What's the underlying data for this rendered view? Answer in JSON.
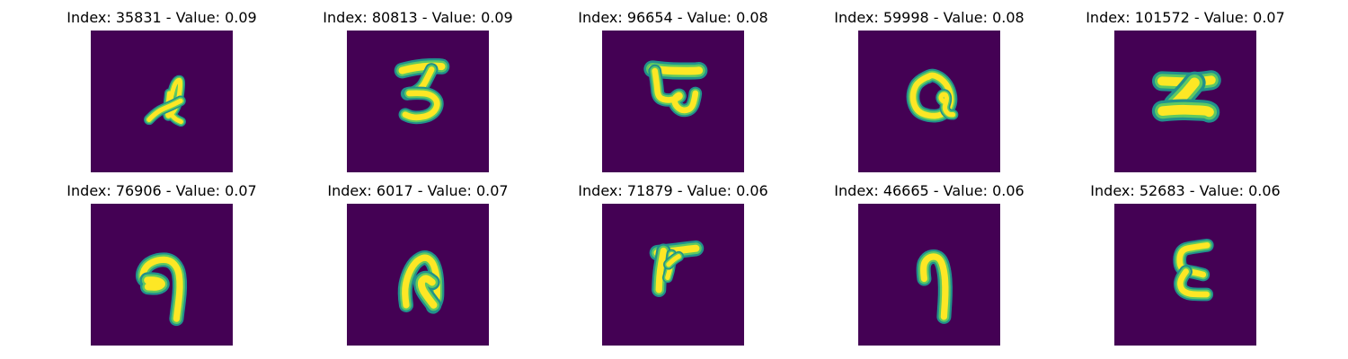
{
  "chart_data": {
    "type": "image-grid",
    "layout": {
      "rows": 2,
      "cols": 5
    },
    "colormap": {
      "name": "viridis",
      "background": "#440154",
      "foreground": "#fde725"
    },
    "axes_visible": false,
    "panels": [
      {
        "title": "Index: 35831 - Value: 0.09",
        "index": 35831,
        "value": 0.09,
        "strokes": [
          {
            "points": [
              [
                1.0,
                3.4
              ],
              [
                0.5,
                7.7
              ],
              [
                1.0,
                8.0
              ],
              [
                2.2,
                6.5
              ],
              [
                2.9,
                4.3
              ],
              [
                3.2,
                1.4
              ],
              [
                3.0,
                0.6
              ],
              [
                2.2,
                1.3
              ],
              [
                1.6,
                3.0
              ],
              [
                1.2,
                4.9
              ],
              [
                1.1,
                7.3
              ],
              [
                2.2,
                8.5
              ],
              [
                3.3,
                9.0
              ]
            ],
            "width": 0.75
          },
          {
            "points": [
              [
                -3.0,
                8.6
              ],
              [
                -1.5,
                7.0
              ],
              [
                1.2,
                5.9
              ],
              [
                3.2,
                4.9
              ]
            ],
            "width": 0.8
          }
        ]
      },
      {
        "title": "Index: 80813 - Value: 0.09",
        "index": 80813,
        "value": 0.09,
        "strokes": [
          {
            "points": [
              [
                -3.6,
                -1.1
              ],
              [
                -2.0,
                -1.5
              ],
              [
                0.5,
                -1.9
              ],
              [
                3.0,
                -2.0
              ],
              [
                4.2,
                -1.9
              ]
            ],
            "width": 1.2
          },
          {
            "points": [
              [
                2.2,
                -1.3
              ],
              [
                1.3,
                0.5
              ],
              [
                0.4,
                2.2
              ],
              [
                -1.2,
                3.3
              ],
              [
                -2.6,
                3.5
              ]
            ],
            "width": 1.0
          },
          {
            "points": [
              [
                -2.2,
                3.4
              ],
              [
                0.5,
                3.3
              ],
              [
                2.3,
                3.8
              ],
              [
                3.4,
                5.0
              ],
              [
                3.1,
                6.6
              ],
              [
                1.7,
                7.8
              ],
              [
                -0.3,
                8.2
              ],
              [
                -1.9,
                8.1
              ],
              [
                -3.0,
                7.6
              ]
            ],
            "width": 1.0
          }
        ]
      },
      {
        "title": "Index: 96654 - Value: 0.08",
        "index": 96654,
        "value": 0.08,
        "strokes": [
          {
            "points": [
              [
                -4.6,
                -1.4
              ],
              [
                -2.0,
                -1.1
              ],
              [
                1.0,
                -1.0
              ],
              [
                3.5,
                -1.0
              ],
              [
                4.6,
                -1.1
              ]
            ],
            "width": 1.3
          },
          {
            "points": [
              [
                -4.1,
                -1.0
              ],
              [
                -3.7,
                1.5
              ],
              [
                -3.5,
                4.1
              ],
              [
                -2.0,
                4.8
              ],
              [
                -0.2,
                4.6
              ],
              [
                0.9,
                4.1
              ],
              [
                0.7,
                3.6
              ],
              [
                -0.3,
                4.4
              ],
              [
                -0.1,
                5.7
              ],
              [
                1.1,
                6.8
              ],
              [
                2.5,
                6.7
              ],
              [
                3.3,
                6.0
              ],
              [
                3.7,
                4.6
              ],
              [
                3.9,
                3.4
              ]
            ],
            "width": 1.0
          }
        ]
      },
      {
        "title": "Index: 59998 - Value: 0.08",
        "index": 59998,
        "value": 0.08,
        "strokes": [
          {
            "points": [
              [
                -0.5,
                0.0
              ],
              [
                -2.6,
                0.9
              ],
              [
                -3.7,
                3.0
              ],
              [
                -3.7,
                5.2
              ],
              [
                -2.7,
                7.1
              ],
              [
                -0.5,
                7.9
              ],
              [
                1.8,
                7.8
              ],
              [
                3.4,
                6.4
              ],
              [
                3.9,
                4.5
              ],
              [
                3.3,
                2.2
              ],
              [
                1.9,
                0.5
              ],
              [
                0.1,
                -0.3
              ],
              [
                -0.8,
                0.2
              ]
            ],
            "width": 1.0
          },
          {
            "points": [
              [
                2.3,
                5.0
              ],
              [
                1.7,
                4.5
              ],
              [
                2.0,
                3.6
              ],
              [
                2.8,
                3.6
              ],
              [
                3.0,
                4.7
              ],
              [
                2.4,
                6.4
              ],
              [
                3.3,
                7.6
              ],
              [
                4.2,
                7.6
              ]
            ],
            "width": 0.8
          }
        ]
      },
      {
        "title": "Index: 101572 - Value: 0.07",
        "index": 101572,
        "value": 0.07,
        "strokes": [
          {
            "points": [
              [
                -5.1,
                1.0
              ],
              [
                -2.5,
                1.1
              ],
              [
                0.2,
                1.2
              ],
              [
                2.5,
                1.1
              ],
              [
                4.6,
                0.8
              ]
            ],
            "width": 1.5
          },
          {
            "points": [
              [
                1.3,
                1.3
              ],
              [
                0.1,
                2.8
              ],
              [
                -1.5,
                4.5
              ],
              [
                -2.6,
                5.6
              ]
            ],
            "width": 1.7
          },
          {
            "points": [
              [
                -5.0,
                6.9
              ],
              [
                -2.0,
                6.6
              ],
              [
                1.1,
                6.7
              ],
              [
                3.6,
                6.8
              ],
              [
                4.2,
                7.1
              ]
            ],
            "width": 1.6
          }
        ]
      },
      {
        "title": "Index: 76906 - Value: 0.07",
        "index": 76906,
        "value": 0.07,
        "strokes": [
          {
            "points": [
              [
                -2.2,
                6.3
              ],
              [
                -3.8,
                6.4
              ],
              [
                -4.4,
                5.1
              ],
              [
                -3.5,
                3.1
              ],
              [
                -1.2,
                2.0
              ],
              [
                1.2,
                2.1
              ],
              [
                2.7,
                3.8
              ],
              [
                3.1,
                6.3
              ],
              [
                3.0,
                8.8
              ],
              [
                2.7,
                11.3
              ],
              [
                2.4,
                13.7
              ]
            ],
            "width": 1.1
          },
          {
            "points": [
              [
                -3.3,
                6.1
              ],
              [
                -1.6,
                6.0
              ],
              [
                -0.2,
                6.8
              ],
              [
                -1.3,
                7.5
              ],
              [
                -3.2,
                7.4
              ]
            ],
            "width": 1.2
          }
        ]
      },
      {
        "title": "Index: 6017 - Value: 0.07",
        "index": 6017,
        "value": 0.07,
        "strokes": [
          {
            "points": [
              [
                -2.8,
                11.0
              ],
              [
                -3.2,
                8.5
              ],
              [
                -2.6,
                5.3
              ],
              [
                -1.1,
                2.5
              ],
              [
                0.9,
                1.4
              ],
              [
                2.4,
                2.4
              ],
              [
                3.2,
                5.0
              ],
              [
                3.3,
                8.4
              ],
              [
                3.2,
                10.0
              ],
              [
                2.5,
                11.3
              ]
            ],
            "width": 1.1
          },
          {
            "points": [
              [
                2.6,
                11.0
              ],
              [
                1.5,
                9.6
              ],
              [
                0.3,
                7.8
              ],
              [
                0.1,
                6.3
              ],
              [
                1.1,
                5.6
              ],
              [
                2.3,
                6.5
              ]
            ],
            "width": 1.2
          }
        ]
      },
      {
        "title": "Index: 71879 - Value: 0.06",
        "index": 71879,
        "value": 0.06,
        "strokes": [
          {
            "points": [
              [
                -3.6,
                0.7
              ],
              [
                -1.0,
                0.4
              ],
              [
                1.5,
                0.1
              ],
              [
                4.0,
                -0.2
              ]
            ],
            "width": 1.2
          },
          {
            "points": [
              [
                -2.4,
                0.3
              ],
              [
                -2.9,
                3.0
              ],
              [
                -3.2,
                5.5
              ],
              [
                -3.3,
                8.0
              ]
            ],
            "width": 1.1
          },
          {
            "points": [
              [
                -0.8,
                1.0
              ],
              [
                -1.0,
                3.5
              ],
              [
                -1.6,
                5.6
              ]
            ],
            "width": 0.8
          },
          {
            "points": [
              [
                -1.4,
                3.0
              ],
              [
                -0.4,
                2.0
              ],
              [
                0.6,
                1.4
              ]
            ],
            "width": 0.8
          }
        ]
      },
      {
        "title": "Index: 46665 - Value: 0.06",
        "index": 46665,
        "value": 0.06,
        "strokes": [
          {
            "points": [
              [
                -1.5,
                5.8
              ],
              [
                -1.8,
                3.5
              ],
              [
                -1.0,
                1.8
              ],
              [
                0.5,
                1.3
              ],
              [
                1.8,
                2.0
              ],
              [
                2.5,
                4.5
              ],
              [
                2.7,
                7.5
              ],
              [
                2.6,
                10.5
              ],
              [
                2.4,
                13.3
              ]
            ],
            "width": 1.1
          }
        ]
      },
      {
        "title": "Index: 52683 - Value: 0.06",
        "index": 52683,
        "value": 0.06,
        "strokes": [
          {
            "points": [
              [
                3.8,
                -0.8
              ],
              [
                1.0,
                -0.4
              ],
              [
                -1.0,
                0.0
              ],
              [
                -1.7,
                1.5
              ],
              [
                -1.5,
                3.6
              ],
              [
                -0.3,
                4.3
              ],
              [
                1.5,
                4.6
              ],
              [
                3.0,
                5.0
              ]
            ],
            "width": 1.0
          },
          {
            "points": [
              [
                -0.4,
                4.4
              ],
              [
                -1.6,
                6.0
              ],
              [
                -1.4,
                7.9
              ],
              [
                0.0,
                8.8
              ],
              [
                2.0,
                8.9
              ],
              [
                3.7,
                8.9
              ]
            ],
            "width": 1.0
          }
        ]
      }
    ]
  }
}
